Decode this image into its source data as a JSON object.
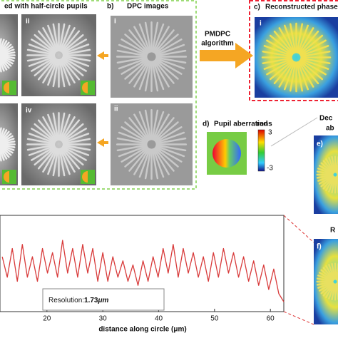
{
  "panel_a": {
    "title": "ed with half-circle pupils",
    "labels": [
      "ii",
      "iv"
    ]
  },
  "panel_b": {
    "letter": "b)",
    "title": "DPC images",
    "labels": [
      "i",
      "ii"
    ]
  },
  "algorithm": {
    "line1": "PMDPC",
    "line2": "algorithm"
  },
  "panel_c": {
    "letter": "c)",
    "title": "Reconstructed phase",
    "label": "i"
  },
  "panel_d": {
    "letter": "d)",
    "title": "Pupil aberrations",
    "colorbar": {
      "unit": "rad",
      "max": "3",
      "min": "-3"
    }
  },
  "panel_e": {
    "title1": "Dec",
    "title2": "ab",
    "letter": "e)"
  },
  "panel_f": {
    "title": "R",
    "letter": "f)"
  },
  "resolution": {
    "label": "Resolution:",
    "value": "1.73",
    "unit": "μm"
  },
  "chart_data": {
    "type": "line",
    "xlabel": "distance along circle (μm)",
    "xlim": [
      11.6,
      62.4
    ],
    "ylim": [
      0,
      1
    ],
    "xticks": [
      20,
      30,
      40,
      50,
      60
    ],
    "color": "#d83a3a",
    "x": [
      12.0,
      12.9,
      13.8,
      14.7,
      15.6,
      16.5,
      17.4,
      18.3,
      19.2,
      20.1,
      21.0,
      21.9,
      22.8,
      23.7,
      24.6,
      25.5,
      26.4,
      27.3,
      28.2,
      29.1,
      30.0,
      30.9,
      31.8,
      32.7,
      33.6,
      34.5,
      35.4,
      36.3,
      37.2,
      38.1,
      39.0,
      39.9,
      40.8,
      41.7,
      42.6,
      43.5,
      44.4,
      45.3,
      46.2,
      47.1,
      48.0,
      48.9,
      49.8,
      50.7,
      51.6,
      52.5,
      53.4,
      54.3,
      55.2,
      56.1,
      57.0,
      57.9,
      58.8,
      59.7,
      60.6,
      61.5,
      62.4
    ],
    "values": [
      0.6,
      0.35,
      0.7,
      0.3,
      0.75,
      0.35,
      0.6,
      0.3,
      0.7,
      0.4,
      0.65,
      0.35,
      0.8,
      0.4,
      0.7,
      0.35,
      0.75,
      0.4,
      0.7,
      0.3,
      0.65,
      0.3,
      0.6,
      0.35,
      0.55,
      0.3,
      0.5,
      0.25,
      0.55,
      0.3,
      0.6,
      0.35,
      0.7,
      0.4,
      0.75,
      0.35,
      0.7,
      0.4,
      0.65,
      0.35,
      0.6,
      0.3,
      0.65,
      0.35,
      0.7,
      0.4,
      0.65,
      0.35,
      0.6,
      0.3,
      0.55,
      0.25,
      0.5,
      0.2,
      0.45,
      0.15,
      0.05
    ]
  }
}
